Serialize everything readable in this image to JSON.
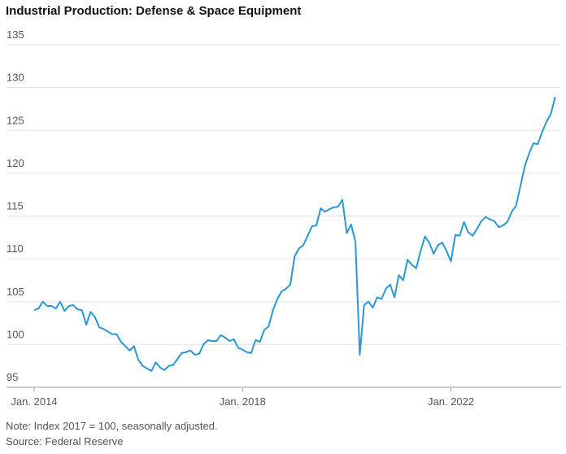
{
  "chart_data": {
    "type": "line",
    "title": "Industrial Production: Defense & Space Equipment",
    "note": "Note: Index 2017 = 100, seasonally adjusted.",
    "source": "Source: Federal Reserve",
    "color": "#2a98d4",
    "grid": true,
    "x": [
      "2014-01",
      "2014-02",
      "2014-03",
      "2014-04",
      "2014-05",
      "2014-06",
      "2014-07",
      "2014-08",
      "2014-09",
      "2014-10",
      "2014-11",
      "2014-12",
      "2015-01",
      "2015-02",
      "2015-03",
      "2015-04",
      "2015-05",
      "2015-06",
      "2015-07",
      "2015-08",
      "2015-09",
      "2015-10",
      "2015-11",
      "2015-12",
      "2016-01",
      "2016-02",
      "2016-03",
      "2016-04",
      "2016-05",
      "2016-06",
      "2016-07",
      "2016-08",
      "2016-09",
      "2016-10",
      "2016-11",
      "2016-12",
      "2017-01",
      "2017-02",
      "2017-03",
      "2017-04",
      "2017-05",
      "2017-06",
      "2017-07",
      "2017-08",
      "2017-09",
      "2017-10",
      "2017-11",
      "2017-12",
      "2018-01",
      "2018-02",
      "2018-03",
      "2018-04",
      "2018-05",
      "2018-06",
      "2018-07",
      "2018-08",
      "2018-09",
      "2018-10",
      "2018-11",
      "2018-12",
      "2019-01",
      "2019-02",
      "2019-03",
      "2019-04",
      "2019-05",
      "2019-06",
      "2019-07",
      "2019-08",
      "2019-09",
      "2019-10",
      "2019-11",
      "2019-12",
      "2020-01",
      "2020-02",
      "2020-03",
      "2020-04",
      "2020-05",
      "2020-06",
      "2020-07",
      "2020-08",
      "2020-09",
      "2020-10",
      "2020-11",
      "2020-12",
      "2021-01",
      "2021-02",
      "2021-03",
      "2021-04",
      "2021-05",
      "2021-06",
      "2021-07",
      "2021-08",
      "2021-09",
      "2021-10",
      "2021-11",
      "2021-12",
      "2022-01",
      "2022-02",
      "2022-03",
      "2022-04",
      "2022-05",
      "2022-06",
      "2022-07",
      "2022-08",
      "2022-09",
      "2022-10",
      "2022-11",
      "2022-12",
      "2023-01",
      "2023-02",
      "2023-03",
      "2023-04",
      "2023-05",
      "2023-06",
      "2023-07",
      "2023-08",
      "2023-09",
      "2023-10",
      "2023-11",
      "2023-12",
      "2024-01"
    ],
    "values": [
      104,
      104.2,
      105,
      104.5,
      104.5,
      104.2,
      105,
      103.9,
      104.5,
      104.6,
      104.1,
      104,
      102.3,
      103.8,
      103.2,
      102,
      101.8,
      101.5,
      101.2,
      101.2,
      100.3,
      99.8,
      99.3,
      99.8,
      98.2,
      97.5,
      97.2,
      96.9,
      97.9,
      97.3,
      97,
      97.5,
      97.6,
      98.3,
      99,
      99.1,
      99.3,
      98.8,
      98.9,
      100,
      100.5,
      100.4,
      100.4,
      101.1,
      100.8,
      100.4,
      100.6,
      99.6,
      99.4,
      99.1,
      99,
      100.5,
      100.3,
      101.7,
      102.1,
      104,
      105.3,
      106.2,
      106.5,
      107,
      110.3,
      111.2,
      111.6,
      112.7,
      113.8,
      113.9,
      115.9,
      115.5,
      115.8,
      116,
      116.1,
      116.9,
      113,
      114,
      112,
      98.8,
      104.6,
      105,
      104.3,
      105.5,
      105.3,
      106.5,
      107,
      105.5,
      108.1,
      107.5,
      109.9,
      109.3,
      108.9,
      110.9,
      112.6,
      111.9,
      110.6,
      111.6,
      111.9,
      110.9,
      109.7,
      112.8,
      112.7,
      114.3,
      113.1,
      112.7,
      113.5,
      114.4,
      114.9,
      114.6,
      114.4,
      113.7,
      113.9,
      114.3,
      115.5,
      116.2,
      118.5,
      120.8,
      122.3,
      123.5,
      123.4,
      124.8,
      126,
      126.9,
      128.9
    ],
    "xlim": [
      "2014-01",
      "2024-02"
    ],
    "xticks": [
      {
        "value": "2014-01",
        "label": "Jan. 2014"
      },
      {
        "value": "2018-01",
        "label": "Jan. 2018"
      },
      {
        "value": "2022-01",
        "label": "Jan. 2022"
      }
    ],
    "ylim": [
      95,
      135
    ],
    "yticks": [
      95,
      100,
      105,
      110,
      115,
      120,
      125,
      130,
      135
    ]
  }
}
